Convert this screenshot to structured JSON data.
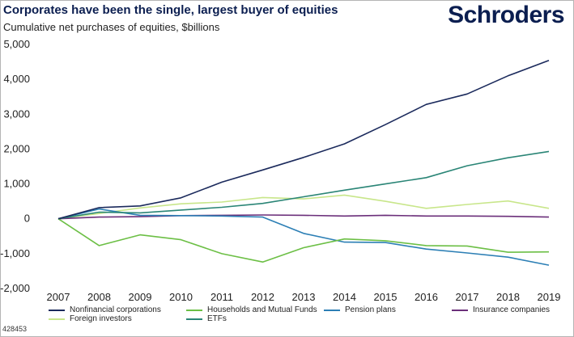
{
  "header": {
    "title": "Corporates have been the single, largest buyer of equities",
    "subtitle": "Cumulative net purchases of equities, $billions",
    "logo_text": "Schroders"
  },
  "footer": {
    "chart_id": "428453"
  },
  "chart_data": {
    "type": "line",
    "title": "Corporates have been the single, largest buyer of equities",
    "subtitle": "Cumulative net purchases of equities, $billions",
    "xlabel": "",
    "ylabel": "",
    "ylim": [
      -2000,
      5000
    ],
    "yticks": [
      5000,
      4000,
      3000,
      2000,
      1000,
      0,
      -1000,
      -2000
    ],
    "ytick_labels": [
      "5,000",
      "4,000",
      "3,000",
      "2,000",
      "1,000",
      "0",
      "-1,000",
      "-2,000"
    ],
    "grid": false,
    "legend_position": "bottom",
    "x": [
      "2007",
      "2008",
      "2009",
      "2010",
      "2011",
      "2012",
      "2013",
      "2014",
      "2015",
      "2016",
      "2017",
      "2018",
      "2019"
    ],
    "series": [
      {
        "name": "Nonfinancial corporations",
        "color": "#1b2a5c",
        "values": [
          0,
          320,
          370,
          600,
          1050,
          1400,
          1760,
          2150,
          2700,
          3280,
          3580,
          4100,
          4540
        ]
      },
      {
        "name": "Households and Mutual Funds",
        "color": "#6cbf45",
        "values": [
          0,
          -770,
          -460,
          -600,
          -1000,
          -1240,
          -830,
          -580,
          -630,
          -770,
          -780,
          -960,
          -950
        ]
      },
      {
        "name": "Pension plans",
        "color": "#2c7fb5",
        "values": [
          0,
          280,
          100,
          90,
          80,
          50,
          -420,
          -670,
          -680,
          -870,
          -980,
          -1100,
          -1330
        ]
      },
      {
        "name": "Insurance companies",
        "color": "#6b2f7a",
        "values": [
          0,
          50,
          60,
          90,
          100,
          110,
          100,
          80,
          100,
          80,
          80,
          70,
          50
        ]
      },
      {
        "name": "Foreign investors",
        "color": "#c8e68a",
        "values": [
          0,
          150,
          310,
          430,
          480,
          610,
          570,
          680,
          500,
          300,
          410,
          510,
          300
        ]
      },
      {
        "name": "ETFs",
        "color": "#2a8576",
        "values": [
          0,
          190,
          170,
          250,
          330,
          440,
          630,
          820,
          1000,
          1180,
          1520,
          1750,
          1930
        ]
      }
    ]
  }
}
